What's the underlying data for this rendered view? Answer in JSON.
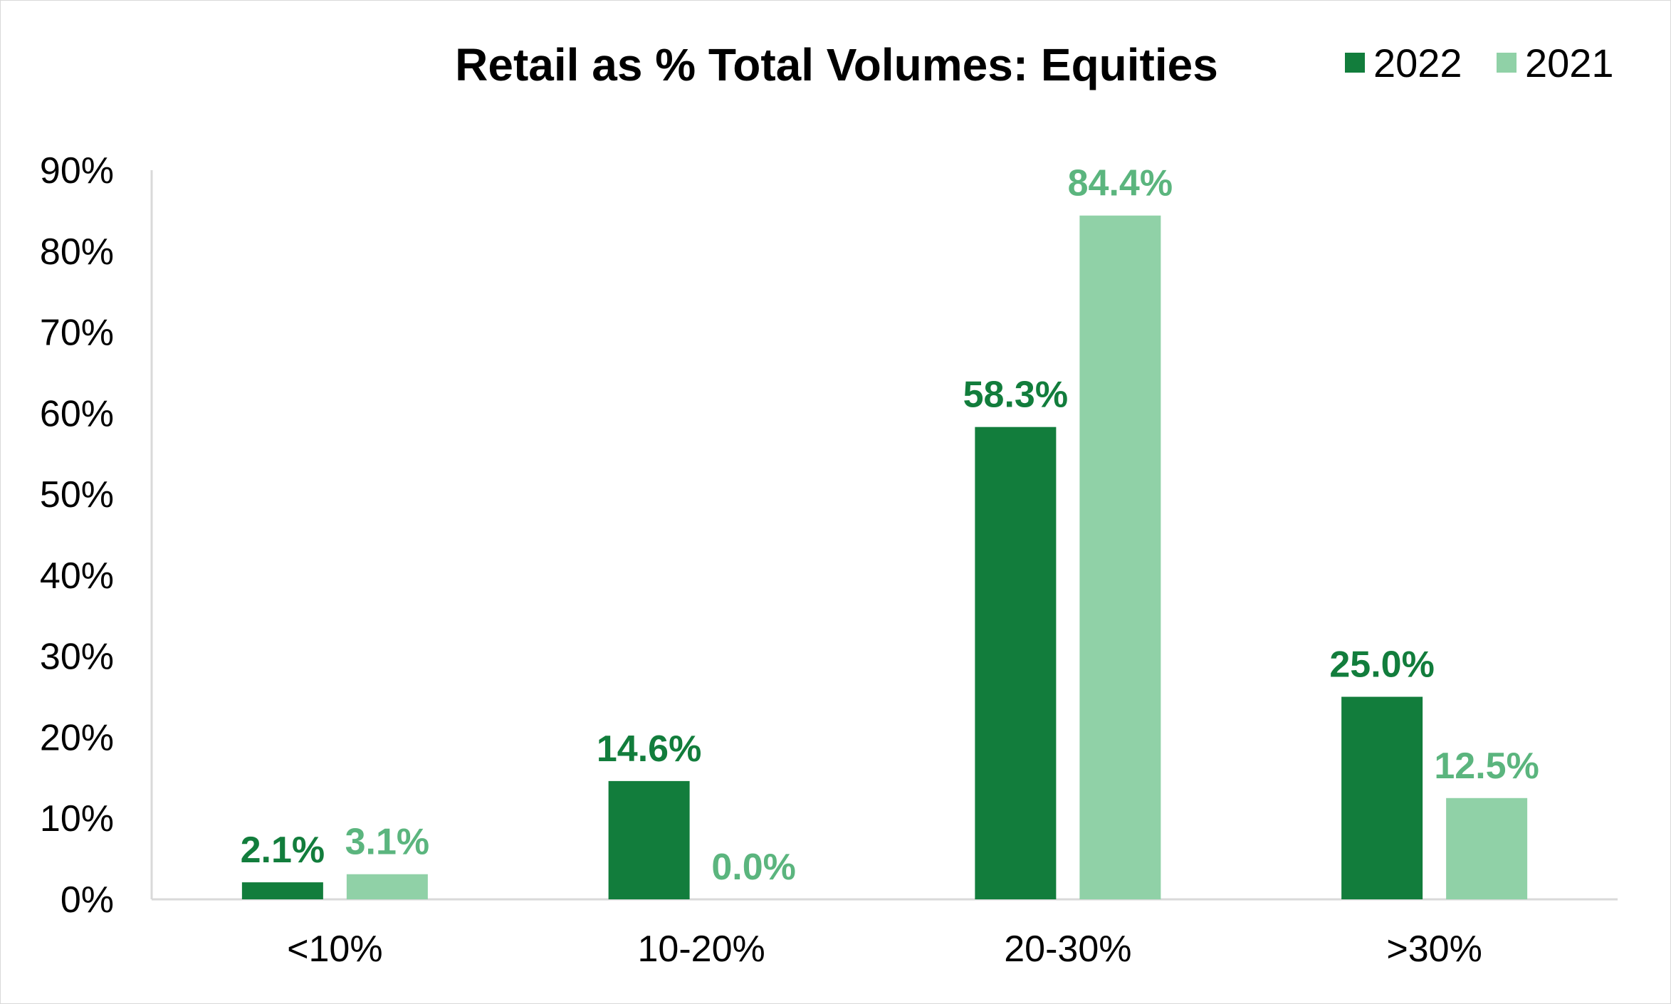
{
  "chart_data": {
    "type": "bar",
    "title": "Retail as % Total Volumes: Equities",
    "categories": [
      "<10%",
      "10-20%",
      "20-30%",
      ">30%"
    ],
    "series": [
      {
        "name": "2022",
        "color": "#127d3c",
        "values": [
          2.1,
          14.6,
          58.3,
          25.0
        ],
        "labels": [
          "2.1%",
          "14.6%",
          "58.3%",
          "25.0%"
        ]
      },
      {
        "name": "2021",
        "color": "#90d1a7",
        "label_color": "#5bb57e",
        "values": [
          3.1,
          0.0,
          84.4,
          12.5
        ],
        "labels": [
          "3.1%",
          "0.0%",
          "84.4%",
          "12.5%"
        ]
      }
    ],
    "yticks": [
      "0%",
      "10%",
      "20%",
      "30%",
      "40%",
      "50%",
      "60%",
      "70%",
      "80%",
      "90%"
    ],
    "ylim": [
      0,
      90
    ],
    "xlabel": "",
    "ylabel": "",
    "legend": "top-right",
    "grid": false
  }
}
